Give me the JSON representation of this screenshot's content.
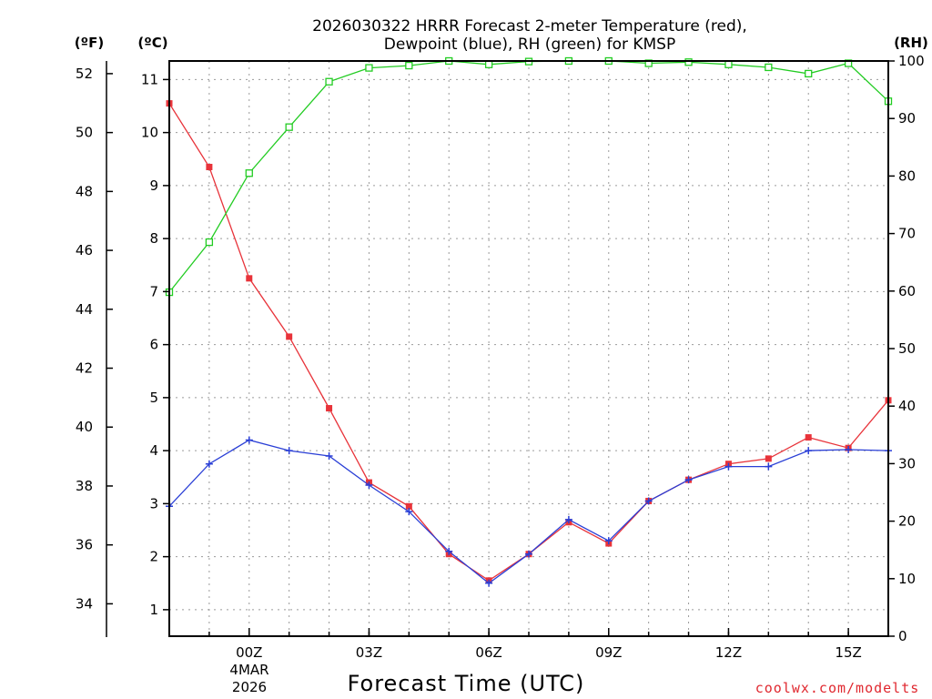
{
  "chart_data": {
    "type": "line",
    "title_line1": "2026030322 HRRR Forecast 2-meter Temperature (red),",
    "title_line2": "Dewpoint (blue), RH (green) for KMSP",
    "xlabel": "Forecast Time (UTC)",
    "credit": "coolwx.com/modelts",
    "unit_f": "(ºF)",
    "unit_c": "(ºC)",
    "unit_rh": "(RH)",
    "x_hours": [
      -2,
      -1,
      0,
      1,
      2,
      3,
      4,
      5,
      6,
      7,
      8,
      9,
      10,
      11,
      12,
      13,
      14,
      15,
      16
    ],
    "x_range": [
      -2,
      16
    ],
    "x_ticks": [
      {
        "hour": 0,
        "label": "00Z"
      },
      {
        "hour": 3,
        "label": "03Z"
      },
      {
        "hour": 6,
        "label": "06Z"
      },
      {
        "hour": 9,
        "label": "09Z"
      },
      {
        "hour": 12,
        "label": "12Z"
      },
      {
        "hour": 15,
        "label": "15Z"
      }
    ],
    "date_label_line1": "4MAR",
    "date_label_line2": "2026",
    "celsius_range": [
      0.5,
      11.35
    ],
    "celsius_ticks": [
      1,
      2,
      3,
      4,
      5,
      6,
      7,
      8,
      9,
      10,
      11
    ],
    "fahrenheit_range": [
      32.9,
      52.43
    ],
    "fahrenheit_ticks": [
      34,
      36,
      38,
      40,
      42,
      44,
      46,
      48,
      50,
      52
    ],
    "rh_range": [
      0,
      100
    ],
    "rh_ticks": [
      0,
      10,
      20,
      30,
      40,
      50,
      60,
      70,
      80,
      90,
      100
    ],
    "series": [
      {
        "name": "Temperature",
        "unit": "C",
        "color": "#e8333a",
        "marker": "filled-square",
        "values": [
          10.55,
          9.35,
          7.25,
          6.15,
          4.8,
          3.4,
          2.95,
          2.05,
          1.55,
          2.05,
          2.65,
          2.25,
          3.05,
          3.45,
          3.75,
          3.85,
          4.25,
          4.05,
          4.95
        ]
      },
      {
        "name": "Dewpoint",
        "unit": "C",
        "color": "#2a3fd6",
        "marker": "plus",
        "values": [
          2.95,
          3.75,
          4.2,
          4.0,
          3.9,
          3.35,
          2.85,
          2.1,
          1.5,
          2.05,
          2.7,
          2.3,
          3.05,
          3.45,
          3.7,
          3.7,
          4.0,
          4.02,
          4.0
        ]
      },
      {
        "name": "Relative Humidity",
        "unit": "%",
        "color": "#22cc22",
        "marker": "open-square",
        "values": [
          59.8,
          68.5,
          80.5,
          88.5,
          96.4,
          98.8,
          99.2,
          100.0,
          99.4,
          99.9,
          100.0,
          100.0,
          99.6,
          99.8,
          99.4,
          98.9,
          97.8,
          99.6,
          93.0
        ]
      }
    ]
  }
}
